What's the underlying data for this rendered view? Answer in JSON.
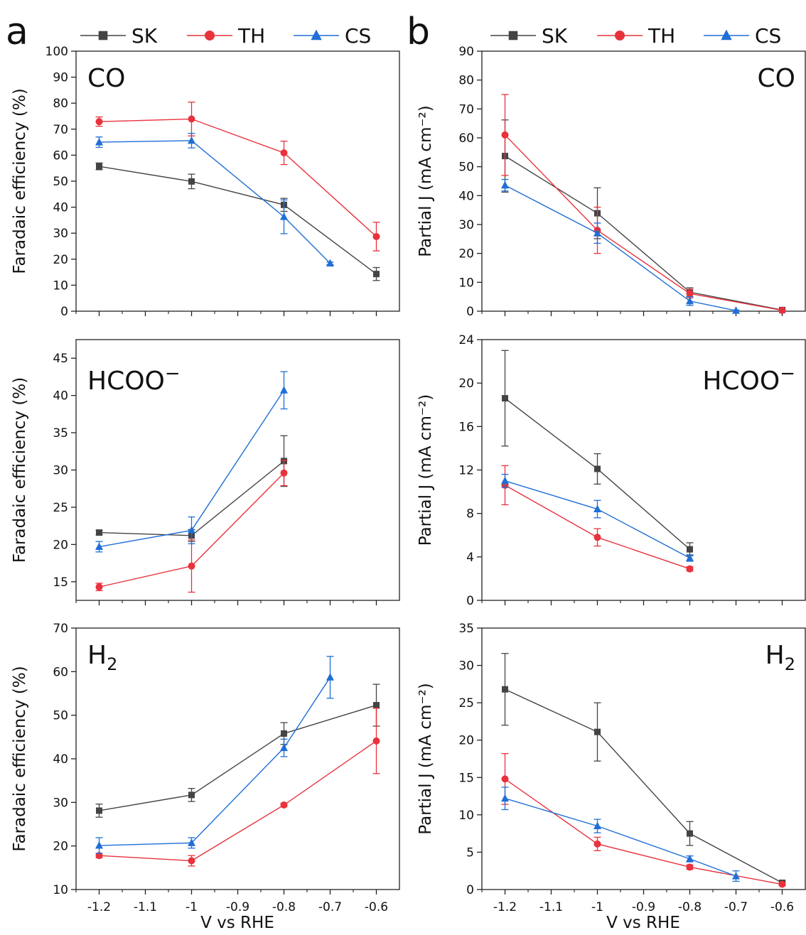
{
  "figure": {
    "legend": [
      {
        "name": "SK",
        "color": "#444444",
        "marker": "square"
      },
      {
        "name": "TH",
        "color": "#e8323c",
        "marker": "circle"
      },
      {
        "name": "CS",
        "color": "#1f6fd6",
        "marker": "triangle"
      }
    ],
    "panel_letters": [
      "a",
      "b"
    ],
    "xlabel": "V vs RHE"
  },
  "chart_data": [
    {
      "id": "a-co",
      "type": "line",
      "product_base": "CO",
      "product_sub": "",
      "product_sup": "",
      "ylabel": "Faradaic efficiency (%)",
      "ylim": [
        0,
        100
      ],
      "yticks": [
        0,
        10,
        20,
        30,
        40,
        50,
        60,
        70,
        80,
        90,
        100
      ],
      "xlim": [
        -1.25,
        -0.55
      ],
      "xticks": [
        -1.2,
        -1.1,
        -1,
        -0.9,
        -0.8,
        -0.7,
        -0.6
      ],
      "title_pos": "top-left",
      "show_xticklabels": false,
      "series": [
        {
          "name": "SK",
          "x": [
            -1.2,
            -1.0,
            -0.8,
            -0.6
          ],
          "y": [
            55.7,
            49.9,
            40.9,
            14.3
          ],
          "err": [
            1.3,
            2.8,
            2.5,
            2.5
          ]
        },
        {
          "name": "TH",
          "x": [
            -1.2,
            -1.0,
            -0.8,
            -0.6
          ],
          "y": [
            72.9,
            73.9,
            60.9,
            28.7
          ],
          "err": [
            1.8,
            6.5,
            4.5,
            5.5
          ]
        },
        {
          "name": "CS",
          "x": [
            -1.2,
            -1.0,
            -0.8,
            -0.7
          ],
          "y": [
            65.0,
            65.6,
            36.3,
            18.4
          ],
          "err": [
            2.0,
            2.8,
            6.5,
            0.5
          ]
        }
      ]
    },
    {
      "id": "b-co",
      "type": "line",
      "product_base": "CO",
      "product_sub": "",
      "product_sup": "",
      "ylabel": "Partial J (mA cm⁻²)",
      "ylim": [
        0,
        90
      ],
      "yticks": [
        0,
        10,
        20,
        30,
        40,
        50,
        60,
        70,
        80,
        90
      ],
      "xlim": [
        -1.25,
        -0.55
      ],
      "xticks": [
        -1.2,
        -1.1,
        -1,
        -0.9,
        -0.8,
        -0.7,
        -0.6
      ],
      "title_pos": "top-right",
      "show_xticklabels": false,
      "series": [
        {
          "name": "SK",
          "x": [
            -1.2,
            -1.0,
            -0.8,
            -0.6
          ],
          "y": [
            53.7,
            33.9,
            6.6,
            0.4
          ],
          "err": [
            12.5,
            8.8,
            1.5,
            0.2
          ]
        },
        {
          "name": "TH",
          "x": [
            -1.2,
            -1.0,
            -0.8,
            -0.6
          ],
          "y": [
            61.0,
            28.0,
            6.1,
            0.3
          ],
          "err": [
            14.0,
            8.0,
            1.5,
            0.2
          ]
        },
        {
          "name": "CS",
          "x": [
            -1.2,
            -1.0,
            -0.8,
            -0.7
          ],
          "y": [
            43.6,
            27.0,
            3.5,
            0.2
          ],
          "err": [
            2.0,
            3.5,
            1.5,
            0.2
          ]
        }
      ]
    },
    {
      "id": "a-hcoo",
      "type": "line",
      "product_base": "HCOO",
      "product_sub": "",
      "product_sup": "−",
      "ylabel": "Faradaic efficiency (%)",
      "ylim": [
        12.5,
        47.5
      ],
      "yticks": [
        15,
        20,
        25,
        30,
        35,
        40,
        45
      ],
      "xlim": [
        -1.25,
        -0.55
      ],
      "xticks": [
        -1.2,
        -1.1,
        -1,
        -0.9,
        -0.8,
        -0.7,
        -0.6
      ],
      "title_pos": "top-left",
      "show_xticklabels": false,
      "series": [
        {
          "name": "SK",
          "x": [
            -1.2,
            -1.0,
            -0.8
          ],
          "y": [
            21.6,
            21.2,
            31.2
          ],
          "err": [
            0.3,
            0.8,
            3.4
          ]
        },
        {
          "name": "TH",
          "x": [
            -1.2,
            -1.0,
            -0.8
          ],
          "y": [
            14.3,
            17.1,
            29.6
          ],
          "err": [
            0.5,
            3.5,
            1.7
          ]
        },
        {
          "name": "CS",
          "x": [
            -1.2,
            -1.0,
            -0.8
          ],
          "y": [
            19.7,
            21.9,
            40.7
          ],
          "err": [
            0.7,
            1.8,
            2.5
          ]
        }
      ]
    },
    {
      "id": "b-hcoo",
      "type": "line",
      "product_base": "HCOO",
      "product_sub": "",
      "product_sup": "−",
      "ylabel": "Partial J (mA cm⁻²)",
      "ylim": [
        0,
        24
      ],
      "yticks": [
        0,
        4,
        8,
        12,
        16,
        20,
        24
      ],
      "xlim": [
        -1.25,
        -0.55
      ],
      "xticks": [
        -1.2,
        -1.1,
        -1,
        -0.9,
        -0.8,
        -0.7,
        -0.6
      ],
      "title_pos": "top-right",
      "show_xticklabels": false,
      "series": [
        {
          "name": "SK",
          "x": [
            -1.2,
            -1.0,
            -0.8
          ],
          "y": [
            18.6,
            12.1,
            4.7
          ],
          "err": [
            4.4,
            1.4,
            0.6
          ]
        },
        {
          "name": "TH",
          "x": [
            -1.2,
            -1.0,
            -0.8
          ],
          "y": [
            10.6,
            5.8,
            2.9
          ],
          "err": [
            1.8,
            0.8,
            0.2
          ]
        },
        {
          "name": "CS",
          "x": [
            -1.2,
            -1.0,
            -0.8
          ],
          "y": [
            11.0,
            8.4,
            3.9
          ],
          "err": [
            0.6,
            0.8,
            0.3
          ]
        }
      ]
    },
    {
      "id": "a-h2",
      "type": "line",
      "product_base": "H",
      "product_sub": "2",
      "product_sup": "",
      "ylabel": "Faradaic efficiency (%)",
      "ylim": [
        10,
        70
      ],
      "yticks": [
        10,
        20,
        30,
        40,
        50,
        60,
        70
      ],
      "xlim": [
        -1.25,
        -0.55
      ],
      "xticks": [
        -1.2,
        -1.1,
        -1,
        -0.9,
        -0.8,
        -0.7,
        -0.6
      ],
      "title_pos": "top-left",
      "show_xticklabels": true,
      "series": [
        {
          "name": "SK",
          "x": [
            -1.2,
            -1.0,
            -0.8,
            -0.6
          ],
          "y": [
            28.1,
            31.7,
            45.8,
            52.3
          ],
          "err": [
            1.5,
            1.5,
            2.5,
            4.8
          ]
        },
        {
          "name": "TH",
          "x": [
            -1.2,
            -1.0,
            -0.8,
            -0.6
          ],
          "y": [
            17.8,
            16.6,
            29.4,
            44.1
          ],
          "err": [
            0.5,
            1.2,
            0.4,
            7.5
          ]
        },
        {
          "name": "CS",
          "x": [
            -1.2,
            -1.0,
            -0.8,
            -0.7
          ],
          "y": [
            20.1,
            20.7,
            42.5,
            58.7
          ],
          "err": [
            1.8,
            1.2,
            2.0,
            4.8
          ]
        }
      ]
    },
    {
      "id": "b-h2",
      "type": "line",
      "product_base": "H",
      "product_sub": "2",
      "product_sup": "",
      "ylabel": "Partial J (mA cm⁻²)",
      "ylim": [
        0,
        35
      ],
      "yticks": [
        0,
        5,
        10,
        15,
        20,
        25,
        30,
        35
      ],
      "xlim": [
        -1.25,
        -0.55
      ],
      "xticks": [
        -1.2,
        -1.1,
        -1,
        -0.9,
        -0.8,
        -0.7,
        -0.6
      ],
      "title_pos": "top-right",
      "show_xticklabels": true,
      "series": [
        {
          "name": "SK",
          "x": [
            -1.2,
            -1.0,
            -0.8,
            -0.6
          ],
          "y": [
            26.8,
            21.1,
            7.5,
            0.9
          ],
          "err": [
            4.8,
            3.9,
            1.6,
            0.2
          ]
        },
        {
          "name": "TH",
          "x": [
            -1.2,
            -1.0,
            -0.8,
            -0.6
          ],
          "y": [
            14.8,
            6.1,
            3.0,
            0.7
          ],
          "err": [
            3.4,
            0.9,
            0.3,
            0.2
          ]
        },
        {
          "name": "CS",
          "x": [
            -1.2,
            -1.0,
            -0.8,
            -0.7
          ],
          "y": [
            12.2,
            8.5,
            4.1,
            1.8
          ],
          "err": [
            1.5,
            0.9,
            0.4,
            0.7
          ]
        }
      ]
    }
  ]
}
